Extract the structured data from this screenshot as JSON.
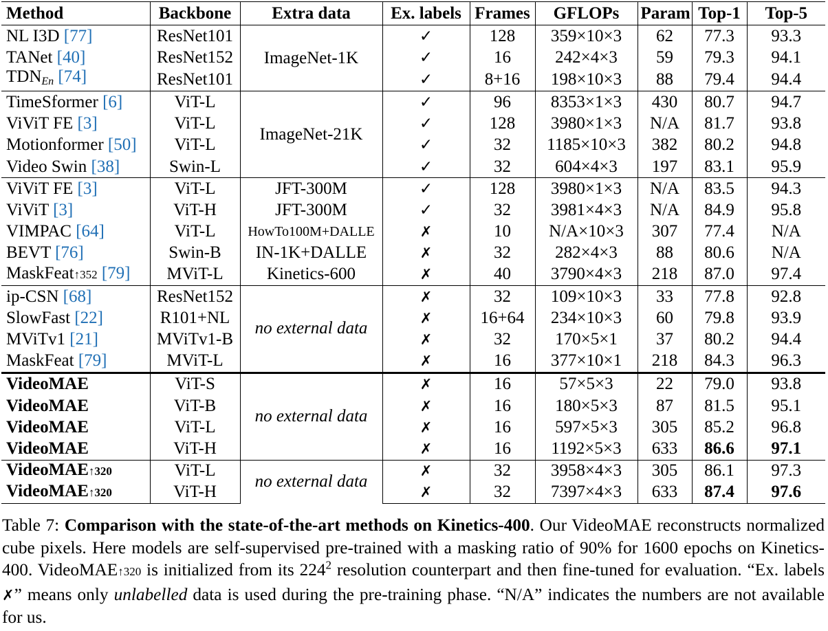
{
  "table": {
    "headers": [
      "Method",
      "Backbone",
      "Extra data",
      "Ex. labels",
      "Frames",
      "GFLOPs",
      "Param",
      "Top-1",
      "Top-5"
    ],
    "groups": [
      {
        "extra_data": "ImageNet-1K",
        "extra_italic": false,
        "rows": [
          {
            "method": "NL I3D",
            "ref": "[77]",
            "backbone": "ResNet101",
            "labels": "✓",
            "frames": "128",
            "gflops": "359×10×3",
            "param": "62",
            "top1": "77.3",
            "top5": "93.3"
          },
          {
            "method": "TANet",
            "ref": "[40]",
            "backbone": "ResNet152",
            "labels": "✓",
            "frames": "16",
            "gflops": "242×4×3",
            "param": "59",
            "top1": "79.3",
            "top5": "94.1"
          },
          {
            "method": "TDN",
            "sub": "En",
            "ref": "[74]",
            "backbone": "ResNet101",
            "labels": "✓",
            "frames": "8+16",
            "gflops": "198×10×3",
            "param": "88",
            "top1": "79.4",
            "top5": "94.4"
          }
        ]
      },
      {
        "extra_data": "ImageNet-21K",
        "extra_italic": false,
        "rows": [
          {
            "method": "TimeSformer",
            "ref": "[6]",
            "backbone": "ViT-L",
            "labels": "✓",
            "frames": "96",
            "gflops": "8353×1×3",
            "param": "430",
            "top1": "80.7",
            "top5": "94.7"
          },
          {
            "method": "ViViT FE",
            "ref": "[3]",
            "backbone": "ViT-L",
            "labels": "✓",
            "frames": "128",
            "gflops": "3980×1×3",
            "param": "N/A",
            "top1": "81.7",
            "top5": "93.8"
          },
          {
            "method": "Motionformer",
            "ref": "[50]",
            "backbone": "ViT-L",
            "labels": "✓",
            "frames": "32",
            "gflops": "1185×10×3",
            "param": "382",
            "top1": "80.2",
            "top5": "94.8"
          },
          {
            "method": "Video Swin",
            "ref": "[38]",
            "backbone": "Swin-L",
            "labels": "✓",
            "frames": "32",
            "gflops": "604×4×3",
            "param": "197",
            "top1": "83.1",
            "top5": "95.9"
          }
        ]
      },
      {
        "extra_data": "",
        "extra_italic": false,
        "rows": [
          {
            "method": "ViViT FE",
            "ref": "[3]",
            "backbone": "ViT-L",
            "extra": "JFT-300M",
            "labels": "✓",
            "frames": "128",
            "gflops": "3980×1×3",
            "param": "N/A",
            "top1": "83.5",
            "top5": "94.3"
          },
          {
            "method": "ViViT",
            "ref": "[3]",
            "backbone": "ViT-H",
            "extra": "JFT-300M",
            "labels": "✓",
            "frames": "32",
            "gflops": "3981×4×3",
            "param": "N/A",
            "top1": "84.9",
            "top5": "95.8"
          },
          {
            "method": "VIMPAC",
            "ref": "[64]",
            "backbone": "ViT-L",
            "extra": "HowTo100M+DALLE",
            "extra_small": true,
            "labels": "✗",
            "frames": "10",
            "gflops": "N/A×10×3",
            "param": "307",
            "top1": "77.4",
            "top5": "N/A"
          },
          {
            "method": "BEVT",
            "ref": "[76]",
            "backbone": "Swin-B",
            "extra": "IN-1K+DALLE",
            "labels": "✗",
            "frames": "32",
            "gflops": "282×4×3",
            "param": "88",
            "top1": "80.6",
            "top5": "N/A"
          },
          {
            "method": "MaskFeat",
            "sup": "↑352",
            "ref": "[79]",
            "backbone": "MViT-L",
            "extra": "Kinetics-600",
            "labels": "✗",
            "frames": "40",
            "gflops": "3790×4×3",
            "param": "218",
            "top1": "87.0",
            "top5": "97.4"
          }
        ]
      },
      {
        "extra_data": "no external data",
        "extra_italic": true,
        "rows": [
          {
            "method": "ip-CSN",
            "ref": "[68]",
            "backbone": "ResNet152",
            "labels": "✗",
            "frames": "32",
            "gflops": "109×10×3",
            "param": "33",
            "top1": "77.8",
            "top5": "92.8"
          },
          {
            "method": "SlowFast",
            "ref": "[22]",
            "backbone": "R101+NL",
            "labels": "✗",
            "frames": "16+64",
            "gflops": "234×10×3",
            "param": "60",
            "top1": "79.8",
            "top5": "93.9"
          },
          {
            "method": "MViTv1",
            "ref": "[21]",
            "backbone": "MViTv1-B",
            "labels": "✗",
            "frames": "32",
            "gflops": "170×5×1",
            "param": "37",
            "top1": "80.2",
            "top5": "94.4"
          },
          {
            "method": "MaskFeat",
            "ref": "[79]",
            "backbone": "MViT-L",
            "labels": "✗",
            "frames": "16",
            "gflops": "377×10×1",
            "param": "218",
            "top1": "84.3",
            "top5": "96.3"
          }
        ]
      },
      {
        "extra_data": "no external data",
        "extra_italic": true,
        "thick": true,
        "rows": [
          {
            "method": "VideoMAE",
            "bold": true,
            "backbone": "ViT-S",
            "labels": "✗",
            "frames": "16",
            "gflops": "57×5×3",
            "param": "22",
            "top1": "79.0",
            "top5": "93.8"
          },
          {
            "method": "VideoMAE",
            "bold": true,
            "backbone": "ViT-B",
            "labels": "✗",
            "frames": "16",
            "gflops": "180×5×3",
            "param": "87",
            "top1": "81.5",
            "top5": "95.1"
          },
          {
            "method": "VideoMAE",
            "bold": true,
            "backbone": "ViT-L",
            "labels": "✗",
            "frames": "16",
            "gflops": "597×5×3",
            "param": "305",
            "top1": "85.2",
            "top5": "96.8"
          },
          {
            "method": "VideoMAE",
            "bold": true,
            "backbone": "ViT-H",
            "labels": "✗",
            "frames": "16",
            "gflops": "1192×5×3",
            "param": "633",
            "top1": "86.6",
            "top5": "97.1",
            "top1_bold": true,
            "top5_bold": true
          }
        ]
      },
      {
        "extra_data": "no external data",
        "extra_italic": true,
        "rows": [
          {
            "method": "VideoMAE",
            "sup": "↑320",
            "bold": true,
            "backbone": "ViT-L",
            "labels": "✗",
            "frames": "32",
            "gflops": "3958×4×3",
            "param": "305",
            "top1": "86.1",
            "top5": "97.3"
          },
          {
            "method": "VideoMAE",
            "sup": "↑320",
            "bold": true,
            "backbone": "ViT-H",
            "labels": "✗",
            "frames": "32",
            "gflops": "7397×4×3",
            "param": "633",
            "top1": "87.4",
            "top5": "97.6",
            "top1_bold": true,
            "top5_bold": true
          }
        ]
      }
    ]
  },
  "caption": {
    "label": "Table 7: ",
    "title": "Comparison with the state-of-the-art methods on Kinetics-400",
    "part1": ". Our VideoMAE reconstructs normalized cube pixels. Here models are self-supervised pre-trained with a masking ratio of 90% for 1600 epochs on Kinetics-400. VideoMAE",
    "arrow": "↑320",
    "part2": " is initialized from its 224",
    "sup": "2",
    "part3": " resolution counterpart and then fine-tuned for evaluation. “Ex. labels ",
    "cross": "✗",
    "part4": "” means only ",
    "italic": "unlabelled",
    "part5": " data is used during the pre-training phase. “N/A” indicates the numbers are not available for us."
  }
}
